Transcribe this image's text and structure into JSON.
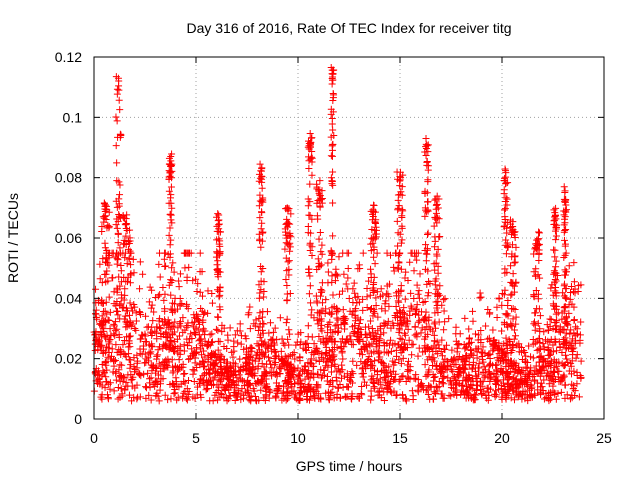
{
  "chart_data": {
    "type": "scatter",
    "title": "Day 316 of 2016, Rate Of TEC Index for receiver titg",
    "xlabel": "GPS time / hours",
    "ylabel": "ROTI / TECUs",
    "xlim": [
      0,
      25
    ],
    "ylim": [
      0,
      0.12
    ],
    "x_ticks": [
      0,
      5,
      10,
      15,
      20,
      25
    ],
    "x_tick_labels": [
      "0",
      "5",
      "10",
      "15",
      "20",
      "25"
    ],
    "y_ticks": [
      0,
      0.02,
      0.04,
      0.06,
      0.08,
      0.1,
      0.12
    ],
    "y_tick_labels": [
      "0",
      "0.02",
      "0.04",
      "0.06",
      "0.08",
      "0.1",
      "0.12"
    ],
    "grid": true,
    "marker": "plus",
    "series": [
      {
        "name": "ROTI",
        "color": "#ff0000",
        "x_range": [
          0,
          23.9
        ],
        "baseline": 0.017,
        "bulk_max": 0.045,
        "n_bulk_points": 2600,
        "spikes": [
          {
            "x": 0.55,
            "y": 0.072,
            "spread": 0.4
          },
          {
            "x": 1.2,
            "y": 0.114,
            "spread": 0.25
          },
          {
            "x": 1.6,
            "y": 0.068,
            "spread": 0.4
          },
          {
            "x": 3.75,
            "y": 0.088,
            "spread": 0.15
          },
          {
            "x": 6.1,
            "y": 0.069,
            "spread": 0.2
          },
          {
            "x": 8.2,
            "y": 0.085,
            "spread": 0.2
          },
          {
            "x": 9.5,
            "y": 0.07,
            "spread": 0.3
          },
          {
            "x": 10.6,
            "y": 0.095,
            "spread": 0.2
          },
          {
            "x": 11.05,
            "y": 0.079,
            "spread": 0.3
          },
          {
            "x": 11.7,
            "y": 0.117,
            "spread": 0.15
          },
          {
            "x": 13.7,
            "y": 0.071,
            "spread": 0.3
          },
          {
            "x": 15.0,
            "y": 0.082,
            "spread": 0.3
          },
          {
            "x": 16.3,
            "y": 0.093,
            "spread": 0.2
          },
          {
            "x": 16.8,
            "y": 0.074,
            "spread": 0.3
          },
          {
            "x": 20.2,
            "y": 0.083,
            "spread": 0.2
          },
          {
            "x": 20.55,
            "y": 0.066,
            "spread": 0.3
          },
          {
            "x": 21.7,
            "y": 0.062,
            "spread": 0.3
          },
          {
            "x": 22.6,
            "y": 0.07,
            "spread": 0.15
          },
          {
            "x": 23.1,
            "y": 0.077,
            "spread": 0.15
          }
        ]
      }
    ]
  }
}
